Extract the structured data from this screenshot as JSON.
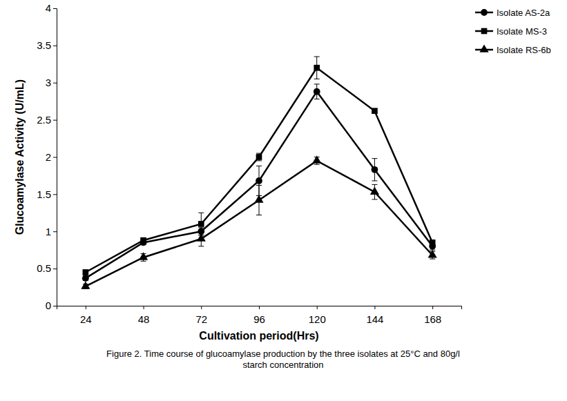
{
  "chart_data": {
    "type": "line",
    "title": "Figure 2. Time course of glucoamylase production by the three isolates at 25°C and 80g/l starch concentration",
    "x_label": "Cultivation period(Hrs)",
    "y_label": "Glucoamylase Activity (U/mL)",
    "categories": [
      24,
      48,
      72,
      96,
      120,
      144,
      168
    ],
    "series": [
      {
        "name": "Isolate AS-2a",
        "color": "#000000",
        "marker": "circle",
        "line_style": "solid",
        "values": [
          0.37,
          0.85,
          1.0,
          1.68,
          2.88,
          1.83,
          0.8
        ],
        "errors": [
          0.03,
          0.03,
          0.05,
          0.2,
          0.1,
          0.15,
          0.05
        ]
      },
      {
        "name": "Isolate MS-3",
        "color": "#000000",
        "marker": "square",
        "line_style": "solid",
        "values": [
          0.45,
          0.88,
          1.1,
          2.0,
          3.2,
          2.62,
          0.85
        ],
        "errors": [
          0.03,
          0.03,
          0.15,
          0.05,
          0.15,
          0.03,
          0.03
        ]
      },
      {
        "name": "Isolate RS-6b",
        "color": "#000000",
        "marker": "triangle",
        "line_style": "solid",
        "values": [
          0.26,
          0.65,
          0.9,
          1.42,
          1.95,
          1.53,
          0.68
        ],
        "errors": [
          0.03,
          0.05,
          0.1,
          0.2,
          0.05,
          0.1,
          0.05
        ]
      }
    ],
    "ylim": [
      0,
      4
    ],
    "yticks": [
      0,
      0.5,
      1,
      1.5,
      2,
      2.5,
      3,
      3.5,
      4
    ],
    "grid": false,
    "legend": "top-right"
  }
}
